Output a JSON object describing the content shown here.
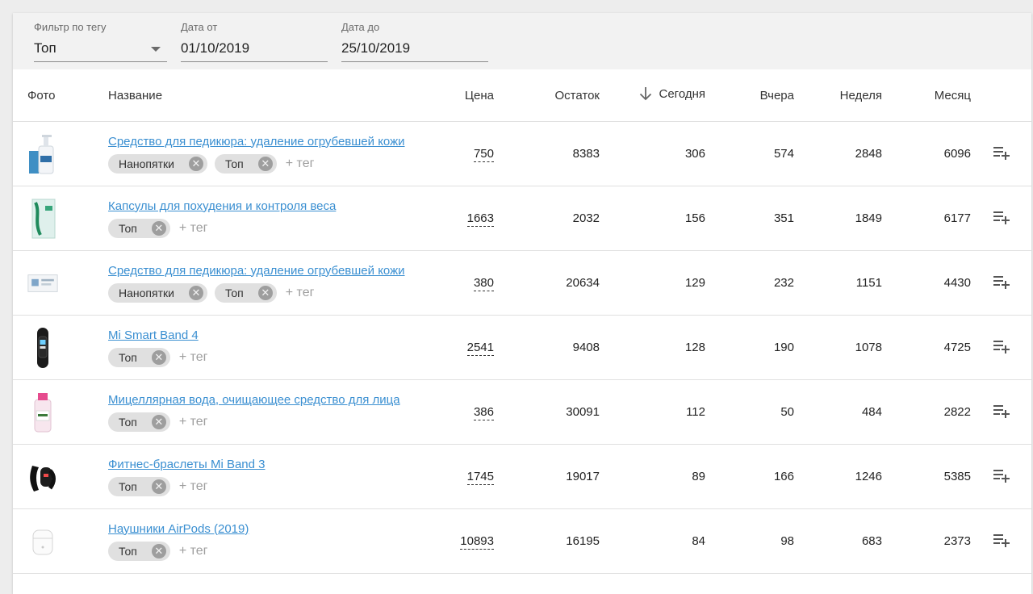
{
  "filters": {
    "tag": {
      "label": "Фильтр по тегу",
      "value": "Топ"
    },
    "date_from": {
      "label": "Дата от",
      "value": "01/10/2019"
    },
    "date_to": {
      "label": "Дата до",
      "value": "25/10/2019"
    }
  },
  "columns": {
    "photo": "Фото",
    "name": "Название",
    "price": "Цена",
    "stock": "Остаток",
    "today": "Сегодня",
    "yesterday": "Вчера",
    "week": "Неделя",
    "month": "Месяц"
  },
  "sort": {
    "column": "today",
    "direction": "desc",
    "icon": "arrow-down-icon"
  },
  "add_tag_label": "+ тег",
  "remove_tag_icon": "close-circle-icon",
  "row_action_icon": "playlist-add-icon",
  "rows": [
    {
      "photo": "bottle-tall-product",
      "name": "Средство для педикюра: удаление огрубевшей кожи",
      "tags": [
        "Нанопятки",
        "Топ"
      ],
      "price": "750",
      "stock": "8383",
      "today": "306",
      "yesterday": "574",
      "week": "2848",
      "month": "6096"
    },
    {
      "photo": "green-box-product",
      "name": "Капсулы для похудения и контроля веса",
      "tags": [
        "Топ"
      ],
      "price": "1663",
      "stock": "2032",
      "today": "156",
      "yesterday": "351",
      "week": "1849",
      "month": "6177"
    },
    {
      "photo": "white-box-product",
      "name": "Средство для педикюра: удаление огрубевшей кожи",
      "tags": [
        "Нанопятки",
        "Топ"
      ],
      "price": "380",
      "stock": "20634",
      "today": "129",
      "yesterday": "232",
      "week": "1151",
      "month": "4430"
    },
    {
      "photo": "fitness-band-product",
      "name": "Mi Smart Band 4",
      "tags": [
        "Топ"
      ],
      "price": "2541",
      "stock": "9408",
      "today": "128",
      "yesterday": "190",
      "week": "1078",
      "month": "4725"
    },
    {
      "photo": "micellar-bottle-product",
      "name": "Мицеллярная вода, очищающее средство для лица",
      "tags": [
        "Топ"
      ],
      "price": "386",
      "stock": "30091",
      "today": "112",
      "yesterday": "50",
      "week": "484",
      "month": "2822"
    },
    {
      "photo": "band-3-product",
      "name": "Фитнес-браслеты Mi Band 3",
      "tags": [
        "Топ"
      ],
      "price": "1745",
      "stock": "19017",
      "today": "89",
      "yesterday": "166",
      "week": "1246",
      "month": "5385"
    },
    {
      "photo": "earbuds-case-product",
      "name": "Наушники AirPods (2019)",
      "tags": [
        "Топ"
      ],
      "price": "10893",
      "stock": "16195",
      "today": "84",
      "yesterday": "98",
      "week": "683",
      "month": "2373"
    }
  ]
}
